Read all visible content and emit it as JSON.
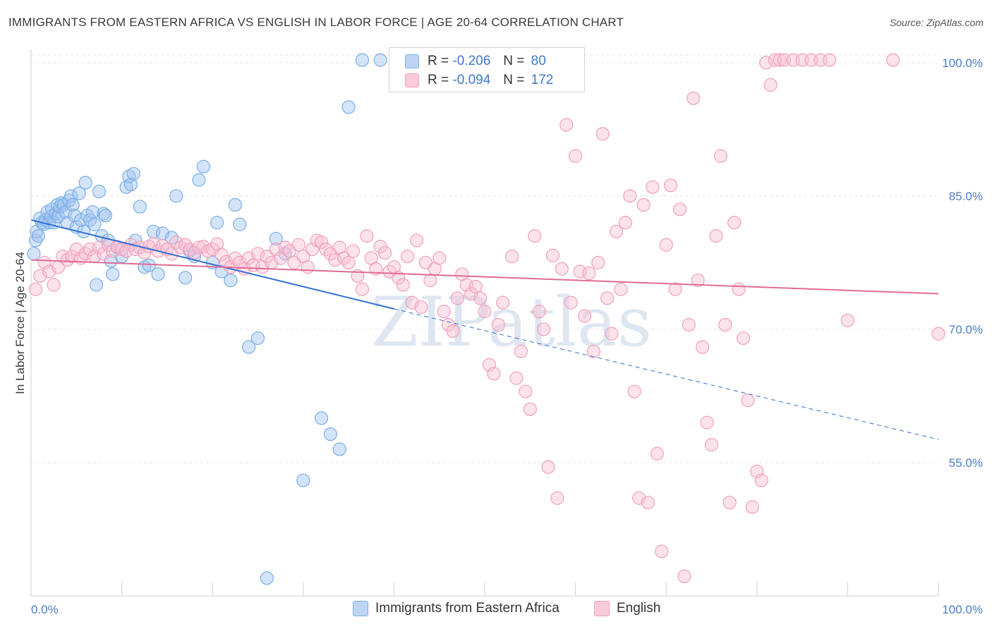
{
  "title": "IMMIGRANTS FROM EASTERN AFRICA VS ENGLISH IN LABOR FORCE | AGE 20-64 CORRELATION CHART",
  "source": "Source: ZipAtlas.com",
  "watermark": "ZIPatlas",
  "legend_top": {
    "r_label": "R =",
    "n_label": "N =",
    "rows": [
      {
        "r": "-0.206",
        "n": "80"
      },
      {
        "r": "-0.094",
        "n": "172"
      }
    ]
  },
  "chart_data": {
    "type": "scatter",
    "ylabel": "In Labor Force | Age 20-64",
    "xlim": [
      0,
      100
    ],
    "ylim": [
      40,
      101.5
    ],
    "x_tick_labels": [
      "0.0%",
      "100.0%"
    ],
    "y_ticks": [
      55,
      70,
      85,
      100
    ],
    "y_tick_labels": [
      "55.0%",
      "70.0%",
      "85.0%",
      "100.0%"
    ],
    "grid": true,
    "legend_position": "bottom",
    "series": [
      {
        "name": "Immigrants from Eastern Africa",
        "color": "#7aaee8",
        "trend": {
          "x0": 0,
          "y0": 82.3,
          "x1": 40,
          "y1": 72.3,
          "dash_to_x": 100,
          "dash_to_y": 57.6
        },
        "points": [
          [
            0.3,
            78.5
          ],
          [
            0.5,
            80.0
          ],
          [
            0.6,
            81.0
          ],
          [
            0.8,
            80.5
          ],
          [
            1.0,
            82.5
          ],
          [
            1.2,
            82.0
          ],
          [
            1.4,
            81.8
          ],
          [
            1.6,
            82.3
          ],
          [
            1.8,
            83.2
          ],
          [
            2.0,
            82.0
          ],
          [
            2.2,
            82.7
          ],
          [
            2.3,
            83.5
          ],
          [
            2.5,
            82.0
          ],
          [
            2.7,
            83.0
          ],
          [
            2.9,
            84.0
          ],
          [
            3.0,
            82.7
          ],
          [
            3.2,
            83.8
          ],
          [
            3.4,
            84.2
          ],
          [
            3.6,
            84.0
          ],
          [
            3.8,
            83.2
          ],
          [
            4.0,
            82.0
          ],
          [
            4.2,
            84.5
          ],
          [
            4.4,
            85.0
          ],
          [
            4.6,
            84.0
          ],
          [
            4.8,
            82.8
          ],
          [
            5.0,
            81.5
          ],
          [
            5.3,
            85.3
          ],
          [
            5.5,
            82.3
          ],
          [
            5.8,
            81.0
          ],
          [
            6.0,
            86.5
          ],
          [
            6.2,
            82.8
          ],
          [
            6.5,
            82.3
          ],
          [
            6.8,
            83.2
          ],
          [
            7.0,
            81.8
          ],
          [
            7.2,
            75.0
          ],
          [
            7.5,
            85.5
          ],
          [
            7.8,
            80.5
          ],
          [
            8.0,
            83.0
          ],
          [
            8.2,
            82.8
          ],
          [
            8.5,
            80.0
          ],
          [
            8.8,
            77.7
          ],
          [
            9.0,
            76.2
          ],
          [
            9.5,
            79.2
          ],
          [
            10.0,
            78.2
          ],
          [
            10.5,
            86.0
          ],
          [
            10.8,
            87.2
          ],
          [
            11.0,
            86.3
          ],
          [
            11.3,
            87.5
          ],
          [
            11.5,
            80.0
          ],
          [
            12.0,
            83.8
          ],
          [
            12.5,
            77.0
          ],
          [
            13.0,
            77.2
          ],
          [
            13.5,
            81.0
          ],
          [
            14.0,
            76.2
          ],
          [
            14.5,
            80.8
          ],
          [
            15.5,
            80.3
          ],
          [
            16.0,
            85.0
          ],
          [
            17.0,
            75.8
          ],
          [
            17.5,
            78.8
          ],
          [
            18.0,
            78.2
          ],
          [
            18.5,
            86.8
          ],
          [
            19.0,
            88.3
          ],
          [
            20.0,
            77.5
          ],
          [
            20.5,
            82.0
          ],
          [
            21.0,
            76.5
          ],
          [
            22.0,
            75.5
          ],
          [
            22.5,
            84.0
          ],
          [
            23.0,
            81.8
          ],
          [
            24.0,
            68.0
          ],
          [
            25.0,
            69.0
          ],
          [
            26.0,
            42.0
          ],
          [
            27.0,
            80.2
          ],
          [
            28.0,
            78.5
          ],
          [
            30.0,
            53.0
          ],
          [
            32.0,
            60.0
          ],
          [
            33.0,
            58.2
          ],
          [
            34.0,
            56.5
          ],
          [
            35.0,
            95.0
          ],
          [
            36.5,
            100.3
          ],
          [
            38.5,
            100.3
          ]
        ]
      },
      {
        "name": "English",
        "color": "#f0a0bc",
        "trend": {
          "x0": 0,
          "y0": 77.8,
          "x1": 100,
          "y1": 74.0
        },
        "points": [
          [
            0.5,
            74.5
          ],
          [
            1.0,
            76.0
          ],
          [
            1.5,
            77.5
          ],
          [
            2.0,
            76.5
          ],
          [
            2.5,
            75.0
          ],
          [
            3.0,
            77.0
          ],
          [
            3.5,
            78.2
          ],
          [
            4.0,
            77.8
          ],
          [
            4.5,
            78.2
          ],
          [
            5.0,
            79.0
          ],
          [
            5.5,
            78.0
          ],
          [
            6.0,
            78.5
          ],
          [
            6.5,
            79.0
          ],
          [
            7.0,
            78.2
          ],
          [
            7.5,
            79.2
          ],
          [
            8.0,
            78.5
          ],
          [
            8.5,
            79.5
          ],
          [
            9.0,
            78.8
          ],
          [
            9.5,
            79.3
          ],
          [
            10.0,
            79.0
          ],
          [
            10.5,
            78.8
          ],
          [
            11.0,
            79.5
          ],
          [
            11.5,
            79.0
          ],
          [
            12.0,
            79.2
          ],
          [
            12.5,
            78.6
          ],
          [
            13.0,
            79.3
          ],
          [
            13.5,
            79.6
          ],
          [
            14.0,
            78.8
          ],
          [
            14.5,
            79.4
          ],
          [
            15.0,
            79.0
          ],
          [
            15.5,
            78.5
          ],
          [
            16.0,
            79.8
          ],
          [
            16.5,
            79.2
          ],
          [
            17.0,
            79.5
          ],
          [
            17.5,
            79.0
          ],
          [
            18.0,
            78.6
          ],
          [
            18.5,
            79.2
          ],
          [
            19.0,
            79.3
          ],
          [
            19.5,
            78.8
          ],
          [
            20.0,
            79.0
          ],
          [
            20.5,
            79.6
          ],
          [
            21.0,
            78.4
          ],
          [
            21.5,
            77.6
          ],
          [
            22.0,
            77.0
          ],
          [
            22.5,
            78.0
          ],
          [
            23.0,
            77.5
          ],
          [
            23.5,
            76.8
          ],
          [
            24.0,
            78.0
          ],
          [
            24.5,
            77.2
          ],
          [
            25.0,
            78.5
          ],
          [
            25.5,
            77.0
          ],
          [
            26.0,
            78.2
          ],
          [
            26.5,
            77.5
          ],
          [
            27.0,
            79.0
          ],
          [
            27.5,
            78.0
          ],
          [
            28.0,
            79.2
          ],
          [
            28.5,
            78.8
          ],
          [
            29.0,
            77.5
          ],
          [
            29.5,
            79.5
          ],
          [
            30.0,
            78.2
          ],
          [
            30.5,
            77.0
          ],
          [
            31.0,
            79.0
          ],
          [
            31.5,
            80.0
          ],
          [
            32.0,
            79.8
          ],
          [
            32.5,
            79.0
          ],
          [
            33.0,
            78.5
          ],
          [
            33.5,
            77.8
          ],
          [
            34.0,
            79.2
          ],
          [
            34.5,
            78.0
          ],
          [
            35.0,
            77.5
          ],
          [
            35.5,
            78.8
          ],
          [
            36.0,
            76.0
          ],
          [
            36.5,
            74.5
          ],
          [
            37.0,
            80.5
          ],
          [
            37.5,
            78.0
          ],
          [
            38.0,
            76.8
          ],
          [
            38.5,
            79.3
          ],
          [
            39.0,
            78.6
          ],
          [
            39.5,
            76.5
          ],
          [
            40.0,
            77.0
          ],
          [
            40.5,
            75.8
          ],
          [
            41.0,
            75.0
          ],
          [
            41.5,
            78.2
          ],
          [
            42.0,
            73.0
          ],
          [
            42.5,
            80.0
          ],
          [
            43.0,
            72.5
          ],
          [
            43.5,
            77.5
          ],
          [
            44.0,
            75.5
          ],
          [
            44.5,
            76.8
          ],
          [
            45.0,
            78.0
          ],
          [
            45.5,
            72.0
          ],
          [
            46.0,
            70.5
          ],
          [
            46.5,
            69.8
          ],
          [
            47.0,
            73.5
          ],
          [
            47.5,
            76.2
          ],
          [
            48.0,
            75.0
          ],
          [
            48.5,
            74.0
          ],
          [
            49.0,
            74.8
          ],
          [
            49.5,
            73.5
          ],
          [
            50.0,
            72.0
          ],
          [
            50.5,
            66.0
          ],
          [
            51.0,
            65.0
          ],
          [
            51.5,
            70.5
          ],
          [
            52.0,
            73.0
          ],
          [
            53.0,
            78.2
          ],
          [
            53.5,
            64.5
          ],
          [
            54.0,
            67.5
          ],
          [
            54.5,
            63.0
          ],
          [
            55.0,
            61.0
          ],
          [
            55.5,
            80.5
          ],
          [
            56.0,
            72.0
          ],
          [
            56.5,
            70.0
          ],
          [
            57.0,
            54.5
          ],
          [
            57.5,
            78.3
          ],
          [
            58.0,
            51.0
          ],
          [
            58.5,
            76.8
          ],
          [
            59.0,
            93.0
          ],
          [
            59.5,
            73.0
          ],
          [
            60.0,
            89.5
          ],
          [
            60.5,
            76.5
          ],
          [
            61.0,
            71.5
          ],
          [
            61.5,
            76.3
          ],
          [
            62.0,
            67.5
          ],
          [
            62.5,
            77.5
          ],
          [
            63.0,
            92.0
          ],
          [
            63.5,
            73.5
          ],
          [
            64.0,
            69.5
          ],
          [
            64.5,
            81.0
          ],
          [
            65.0,
            74.5
          ],
          [
            65.5,
            82.0
          ],
          [
            66.0,
            85.0
          ],
          [
            66.5,
            63.0
          ],
          [
            67.0,
            51.0
          ],
          [
            67.5,
            84.0
          ],
          [
            68.0,
            50.5
          ],
          [
            68.5,
            86.0
          ],
          [
            69.0,
            56.0
          ],
          [
            69.5,
            45.0
          ],
          [
            70.0,
            79.5
          ],
          [
            70.5,
            86.2
          ],
          [
            71.0,
            74.5
          ],
          [
            71.5,
            83.5
          ],
          [
            72.0,
            42.2
          ],
          [
            72.5,
            70.5
          ],
          [
            73.0,
            96.0
          ],
          [
            73.5,
            75.5
          ],
          [
            74.0,
            68.0
          ],
          [
            74.5,
            59.5
          ],
          [
            75.0,
            57.0
          ],
          [
            75.5,
            80.5
          ],
          [
            76.0,
            89.5
          ],
          [
            76.5,
            70.5
          ],
          [
            77.0,
            50.5
          ],
          [
            77.5,
            82.0
          ],
          [
            78.0,
            74.5
          ],
          [
            78.5,
            69.0
          ],
          [
            79.0,
            62.0
          ],
          [
            79.5,
            50.0
          ],
          [
            80.0,
            54.0
          ],
          [
            80.5,
            53.0
          ],
          [
            81.0,
            100.0
          ],
          [
            81.5,
            97.5
          ],
          [
            82.0,
            100.3
          ],
          [
            82.5,
            100.3
          ],
          [
            83.0,
            100.3
          ],
          [
            84.0,
            100.3
          ],
          [
            85.0,
            100.3
          ],
          [
            86.0,
            100.3
          ],
          [
            87.0,
            100.3
          ],
          [
            88.0,
            100.3
          ],
          [
            90.0,
            71.0
          ],
          [
            95.0,
            100.3
          ],
          [
            100.0,
            69.5
          ]
        ]
      }
    ]
  }
}
